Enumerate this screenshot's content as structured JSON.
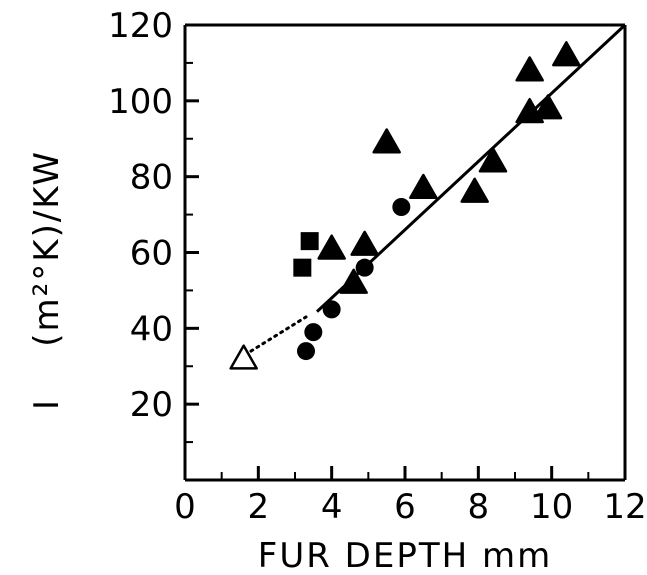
{
  "chart_data": {
    "type": "scatter",
    "title": "",
    "xlabel": "FUR DEPTH mm",
    "ylabel": "I    (m²°K)/KW",
    "xlim": [
      0,
      12
    ],
    "ylim": [
      0,
      120
    ],
    "grid": false,
    "x_ticks": [
      "0",
      "2",
      "4",
      "6",
      "8",
      "10",
      "12"
    ],
    "y_ticks": [
      "20",
      "40",
      "60",
      "80",
      "100",
      "120"
    ],
    "series": [
      {
        "marker": "filled-triangle",
        "points": [
          [
            4.0,
            61
          ],
          [
            4.9,
            62
          ],
          [
            4.6,
            52
          ],
          [
            5.5,
            89
          ],
          [
            6.5,
            77
          ],
          [
            7.9,
            76
          ],
          [
            8.4,
            84
          ],
          [
            9.4,
            108
          ],
          [
            9.4,
            97
          ],
          [
            9.9,
            98
          ],
          [
            10.4,
            112
          ]
        ]
      },
      {
        "marker": "filled-circle",
        "points": [
          [
            3.3,
            34
          ],
          [
            3.5,
            39
          ],
          [
            4.0,
            45
          ],
          [
            4.9,
            56
          ],
          [
            5.9,
            72
          ]
        ]
      },
      {
        "marker": "filled-square",
        "points": [
          [
            3.2,
            56
          ],
          [
            3.4,
            63
          ]
        ]
      },
      {
        "marker": "open-triangle",
        "points": [
          [
            1.6,
            32
          ]
        ]
      }
    ],
    "fit_line": {
      "style": "solid",
      "x_range": [
        3.6,
        12
      ],
      "slope": 9.0,
      "intercept": 12
    },
    "extrapolation": {
      "style": "dotted",
      "from": [
        1.8,
        34
      ],
      "to": [
        3.3,
        43
      ]
    },
    "colors": {
      "ink": "#000000",
      "background": "#ffffff"
    }
  }
}
